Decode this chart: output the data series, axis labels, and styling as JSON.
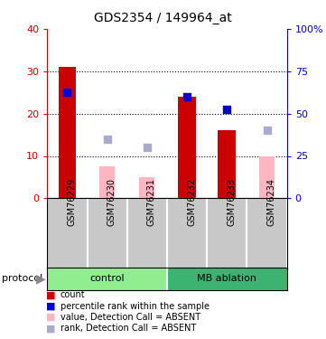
{
  "title": "GDS2354 / 149964_at",
  "samples": [
    "GSM76229",
    "GSM76230",
    "GSM76231",
    "GSM76232",
    "GSM76233",
    "GSM76234"
  ],
  "red_bars": [
    31,
    0,
    0,
    24,
    16,
    0
  ],
  "pink_bars": [
    0,
    7.5,
    5,
    0,
    0,
    10
  ],
  "blue_squares_left": [
    25,
    0,
    0,
    24,
    0,
    0
  ],
  "blue_squares_right": [
    0,
    0,
    0,
    0,
    21,
    0
  ],
  "light_blue_squares_left": [
    0,
    14,
    12,
    0,
    0,
    16
  ],
  "ylim_left": [
    0,
    40
  ],
  "ylim_right": [
    0,
    100
  ],
  "yticks_left": [
    0,
    10,
    20,
    30,
    40
  ],
  "yticks_right": [
    0,
    25,
    50,
    75,
    100
  ],
  "ytick_labels_right": [
    "0",
    "25",
    "50",
    "75",
    "100%"
  ],
  "left_axis_color": "#CC0000",
  "right_axis_color": "#0000CC",
  "sample_area_color": "#C8C8C8",
  "control_color": "#90EE90",
  "ablation_color": "#3CB371",
  "legend_labels": [
    "count",
    "percentile rank within the sample",
    "value, Detection Call = ABSENT",
    "rank, Detection Call = ABSENT"
  ],
  "legend_colors": [
    "#CC0000",
    "#0000CC",
    "#FFB6C1",
    "#AAAACC"
  ]
}
